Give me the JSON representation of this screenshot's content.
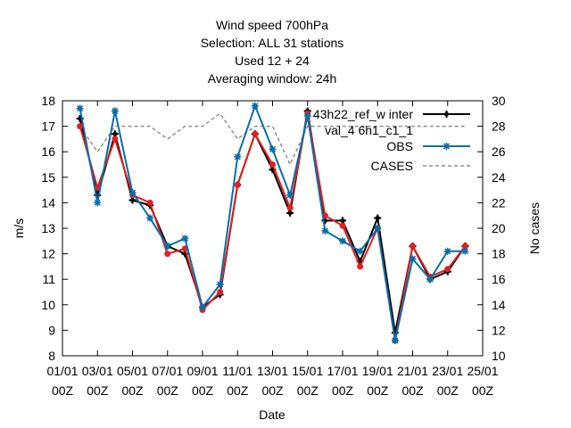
{
  "chart_data": {
    "type": "line",
    "title_lines": [
      "Wind speed 700hPa",
      "Selection: ALL     31 stations",
      "Used  12  + 24",
      "Averaging window: 24h"
    ],
    "xlabel": "Date",
    "ylabel": "m/s",
    "y2label": "No cases",
    "ylim": [
      8,
      18
    ],
    "y2lim": [
      10,
      30
    ],
    "xlim": [
      0,
      24
    ],
    "yticks": [
      8,
      9,
      10,
      11,
      12,
      13,
      14,
      15,
      16,
      17,
      18
    ],
    "y2ticks": [
      10,
      12,
      14,
      16,
      18,
      20,
      22,
      24,
      26,
      28,
      30
    ],
    "xticks": [
      {
        "x": 0,
        "top": "01/01",
        "bottom": "00Z"
      },
      {
        "x": 2,
        "top": "03/01",
        "bottom": "00Z"
      },
      {
        "x": 4,
        "top": "05/01",
        "bottom": "00Z"
      },
      {
        "x": 6,
        "top": "07/01",
        "bottom": "00Z"
      },
      {
        "x": 8,
        "top": "09/01",
        "bottom": "00Z"
      },
      {
        "x": 10,
        "top": "11/01",
        "bottom": "00Z"
      },
      {
        "x": 12,
        "top": "13/01",
        "bottom": "00Z"
      },
      {
        "x": 14,
        "top": "15/01",
        "bottom": "00Z"
      },
      {
        "x": 16,
        "top": "17/01",
        "bottom": "00Z"
      },
      {
        "x": 18,
        "top": "19/01",
        "bottom": "00Z"
      },
      {
        "x": 20,
        "top": "21/01",
        "bottom": "00Z"
      },
      {
        "x": 22,
        "top": "23/01",
        "bottom": "00Z"
      },
      {
        "x": 24,
        "top": "25/01",
        "bottom": "00Z"
      }
    ],
    "legend_position": "top-right",
    "x": [
      1,
      2,
      3,
      4,
      5,
      6,
      7,
      8,
      9,
      10,
      11,
      12,
      13,
      14,
      15,
      16,
      17,
      18,
      19,
      20,
      21,
      22,
      23
    ],
    "series": [
      {
        "name": "43h22 ref_w inter val 4 6h1 c1 1",
        "legend_lines": [
          "43h22_ref_w inter",
          "val_4 6h1_c1_1"
        ],
        "axis": "y1",
        "color": "#000000",
        "marker": "plus",
        "dash": "",
        "values": [
          17.3,
          14.3,
          16.7,
          14.1,
          13.9,
          12.3,
          12.0,
          9.9,
          10.4,
          14.7,
          16.7,
          15.3,
          13.6,
          17.6,
          13.3,
          13.3,
          11.7,
          13.4,
          8.9,
          12.3,
          11.0,
          11.3,
          12.3
        ]
      },
      {
        "name": "43h22 ref_w inter val 4 6h1 c1 1 (red)",
        "axis": "y1",
        "color": "#e02020",
        "marker": "circle",
        "dash": "",
        "show_in_legend": false,
        "values": [
          17.0,
          14.6,
          16.5,
          14.3,
          14.0,
          12.0,
          12.2,
          9.8,
          10.5,
          14.7,
          16.7,
          15.5,
          13.8,
          17.5,
          13.5,
          13.1,
          11.5,
          13.0,
          8.6,
          12.3,
          11.1,
          11.4,
          12.3
        ]
      },
      {
        "name": "OBS",
        "legend_lines": [
          "OBS"
        ],
        "axis": "y1",
        "color": "#0a6ea8",
        "marker": "star",
        "dash": "",
        "values": [
          17.7,
          14.0,
          17.6,
          14.4,
          13.4,
          12.3,
          12.6,
          9.9,
          10.8,
          15.8,
          17.8,
          16.1,
          14.3,
          17.4,
          12.9,
          12.5,
          12.1,
          13.0,
          8.6,
          11.8,
          11.0,
          12.1,
          12.1
        ]
      },
      {
        "name": "CASES",
        "legend_lines": [
          "CASES"
        ],
        "axis": "y2",
        "color": "#909090",
        "marker": "none",
        "dash": "4,3",
        "values": [
          28,
          26,
          28,
          28,
          28,
          27,
          28,
          28,
          29,
          27,
          28,
          28,
          25,
          28,
          28,
          28,
          28,
          28,
          28,
          28,
          28,
          28,
          28
        ]
      }
    ]
  }
}
